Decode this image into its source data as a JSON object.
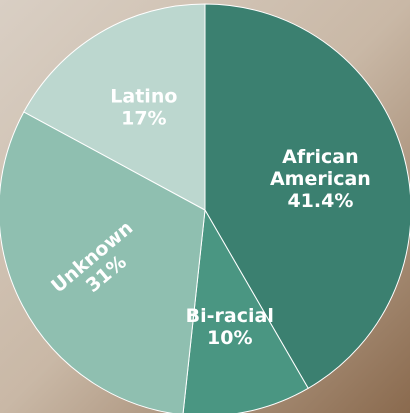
{
  "chart_data": {
    "type": "pie",
    "categories": [
      "African American",
      "Bi-racial",
      "Unknown",
      "Latino"
    ],
    "values": [
      41.4,
      10,
      31,
      17
    ],
    "value_labels": [
      "41.4%",
      "10%",
      "31%",
      "17%"
    ],
    "colors": [
      "#3b8070",
      "#4a9682",
      "#8fbfb0",
      "#bcd7cf"
    ]
  }
}
